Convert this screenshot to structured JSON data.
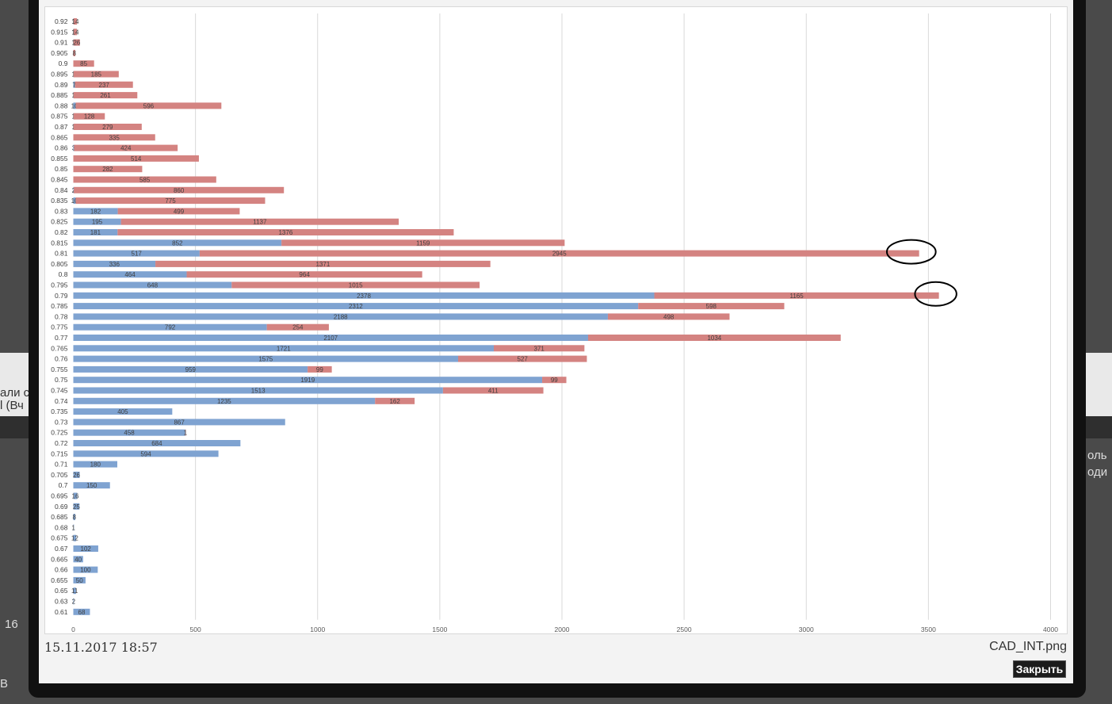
{
  "background_fragments": {
    "left": [
      "али с",
      "l (Вч",
      "16",
      "B"
    ],
    "right": [
      "оль",
      "оди"
    ]
  },
  "caption": {
    "date": "15.11.2017 18:57",
    "filename": "CAD_INT.png",
    "close_label": "Закрыть"
  },
  "colors": {
    "series_blue": "#7fa3d1",
    "series_red": "#d48381",
    "annotation": "#000000"
  },
  "chart_data": {
    "type": "bar",
    "orientation": "horizontal",
    "stacked": true,
    "grid": true,
    "xlim": [
      0,
      4000
    ],
    "xticks": [
      0,
      500,
      1000,
      1500,
      2000,
      2500,
      3000,
      3500,
      4000
    ],
    "categories": [
      "0.92",
      "0.915",
      "0.91",
      "0.905",
      "0.9",
      "0.895",
      "0.89",
      "0.885",
      "0.88",
      "0.875",
      "0.87",
      "0.865",
      "0.86",
      "0.855",
      "0.85",
      "0.845",
      "0.84",
      "0.835",
      "0.83",
      "0.825",
      "0.82",
      "0.815",
      "0.81",
      "0.805",
      "0.8",
      "0.795",
      "0.79",
      "0.785",
      "0.78",
      "0.775",
      "0.77",
      "0.765",
      "0.76",
      "0.755",
      "0.75",
      "0.745",
      "0.74",
      "0.735",
      "0.73",
      "0.725",
      "0.72",
      "0.715",
      "0.71",
      "0.705",
      "0.7",
      "0.695",
      "0.69",
      "0.685",
      "0.68",
      "0.675",
      "0.67",
      "0.665",
      "0.66",
      "0.655",
      "0.65",
      "0.63",
      "0.61"
    ],
    "series": [
      {
        "values": [
          1,
          1,
          1,
          0,
          0,
          1,
          7,
          1,
          10,
          1,
          1,
          0,
          3,
          0,
          0,
          0,
          2,
          10,
          182,
          195,
          181,
          852,
          517,
          336,
          464,
          648,
          2378,
          2312,
          2188,
          792,
          2107,
          1721,
          1575,
          959,
          1919,
          1513,
          1235,
          405,
          867,
          458,
          684,
          594,
          180,
          26,
          150,
          16,
          25,
          8,
          1,
          12,
          102,
          40,
          100,
          50,
          11,
          2,
          68
        ]
      },
      {
        "values": [
          14,
          14,
          26,
          8,
          85,
          185,
          237,
          261,
          596,
          128,
          279,
          335,
          424,
          514,
          282,
          585,
          860,
          775,
          499,
          1137,
          1376,
          1159,
          2945,
          1371,
          964,
          1015,
          1165,
          598,
          498,
          254,
          1034,
          371,
          527,
          99,
          99,
          411,
          162,
          0,
          0,
          1,
          0,
          0,
          0,
          0,
          0,
          0,
          0,
          0,
          0,
          0,
          0,
          0,
          0,
          0,
          0,
          0,
          0
        ]
      }
    ],
    "annotations": [
      {
        "shape": "ellipse",
        "category": "0.81",
        "x_center": 3430,
        "x_radius": 100
      },
      {
        "shape": "ellipse",
        "category": "0.79",
        "x_center": 3530,
        "x_radius": 85
      }
    ]
  }
}
